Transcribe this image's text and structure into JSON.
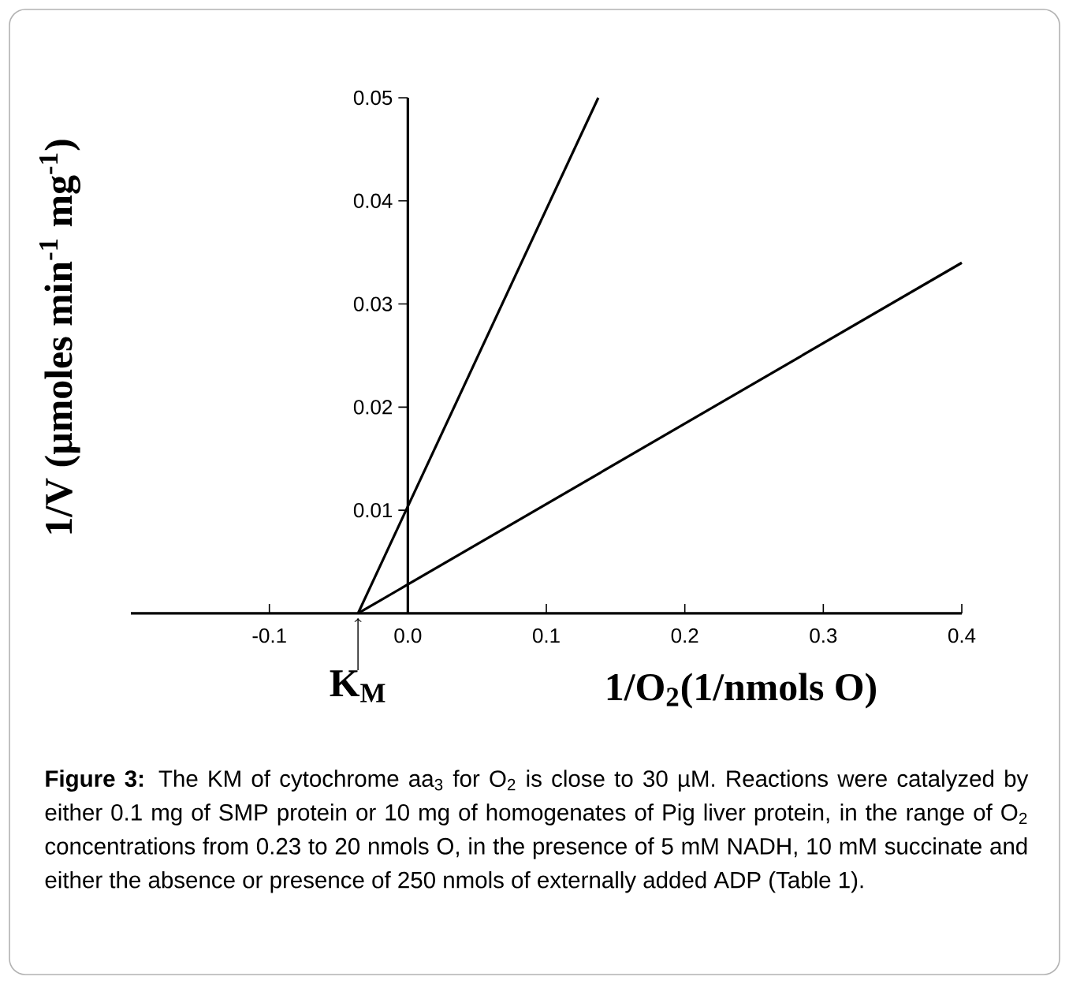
{
  "chart_data": {
    "type": "line",
    "xlabel": "1/O$_{2}$(1/nmols O)",
    "ylabel": "1/V (µmoles min$^{-1}$ mg$^{-1}$)",
    "series": [
      {
        "color": "#000000",
        "x": [
          -0.036,
          0.1375
        ],
        "values": [
          0,
          0.05
        ]
      },
      {
        "color": "#000000",
        "x": [
          -0.036,
          0.4
        ],
        "values": [
          0,
          0.034
        ]
      }
    ],
    "xlim": [
      -0.2,
      0.4
    ],
    "ylim": [
      0,
      0.05
    ],
    "xticks": [
      -0.1,
      {
        "value": 0,
        "label": "0.0"
      },
      0.1,
      0.2,
      0.3,
      0.4
    ],
    "yticks": [
      0.01,
      0.02,
      0.03,
      0.04,
      0.05
    ],
    "line_style": "solid",
    "annotations": [
      {
        "text": "K$_{M}$",
        "x": -0.036,
        "y": 0
      },
      "**Figure 3:** The KM of cytochrome aa$_{3}$ for O$_{2}$ is close to 30 µM. Reactions were catalyzed by either 0.1 mg of SMP protein or 10 mg of homogenates of Pig liver protein, in the range of O$_{2}$ concentrations from 0.23 to 20 nmols O, in the presence of 5 mM NADH, 10 mM succinate and either the absence or presence of 250 nmols of externally added ADP (Table 1)."
    ]
  }
}
